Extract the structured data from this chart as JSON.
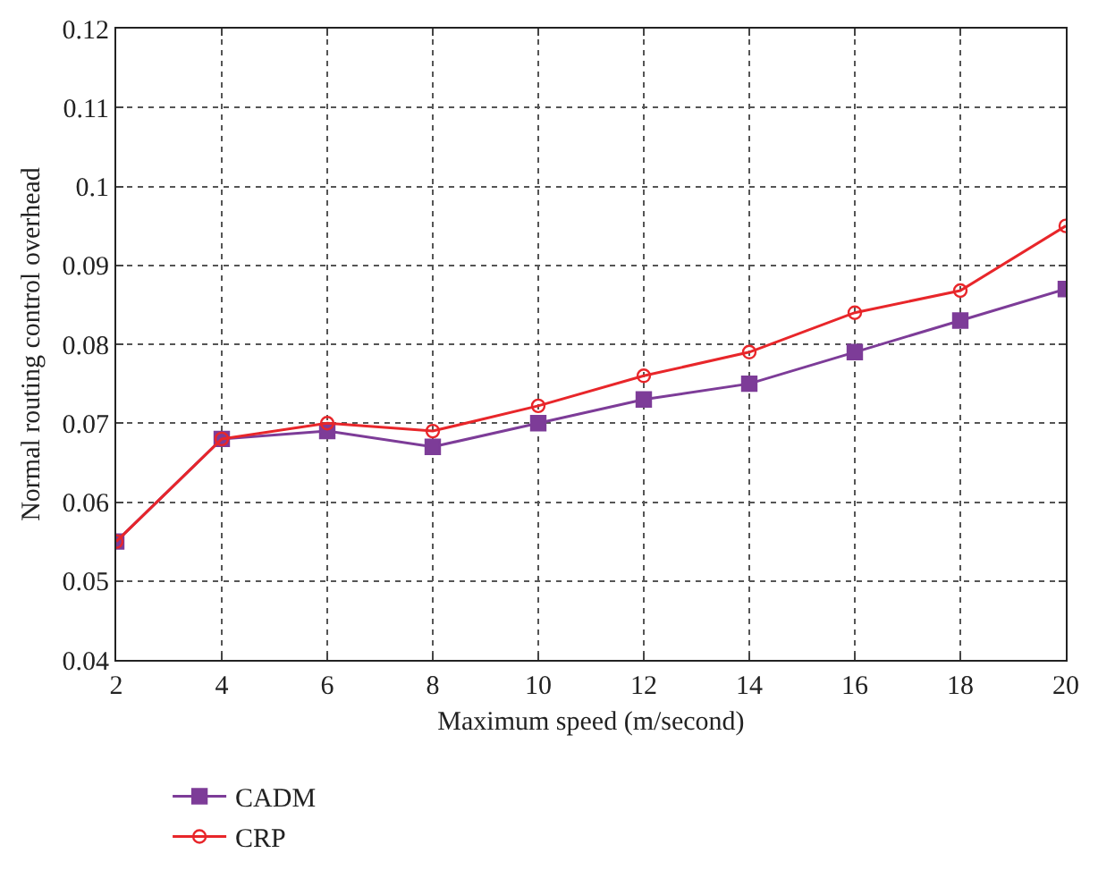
{
  "chart_data": {
    "type": "line",
    "xlabel": "Maximum speed (m/second)",
    "ylabel": "Normal routing control overhead",
    "x": [
      2,
      4,
      6,
      8,
      10,
      12,
      14,
      16,
      18,
      20
    ],
    "series": [
      {
        "name": "CADM",
        "color": "#7d3c98",
        "marker": "square",
        "values": [
          0.055,
          0.068,
          0.069,
          0.067,
          0.07,
          0.073,
          0.075,
          0.079,
          0.083,
          0.087
        ]
      },
      {
        "name": "CRP",
        "color": "#e8262a",
        "marker": "circle",
        "values": [
          0.055,
          0.068,
          0.07,
          0.069,
          0.0722,
          0.076,
          0.079,
          0.084,
          0.0868,
          0.095
        ]
      }
    ],
    "xlim": [
      2,
      20
    ],
    "xticks": [
      2,
      4,
      6,
      8,
      10,
      12,
      14,
      16,
      18,
      20
    ],
    "ylim": [
      0.04,
      0.12
    ],
    "yticks": [
      0.04,
      0.05,
      0.06,
      0.07,
      0.08,
      0.09,
      0.1,
      0.11,
      0.12
    ],
    "grid": true,
    "legend": "bottom left",
    "line_style": "solid"
  }
}
